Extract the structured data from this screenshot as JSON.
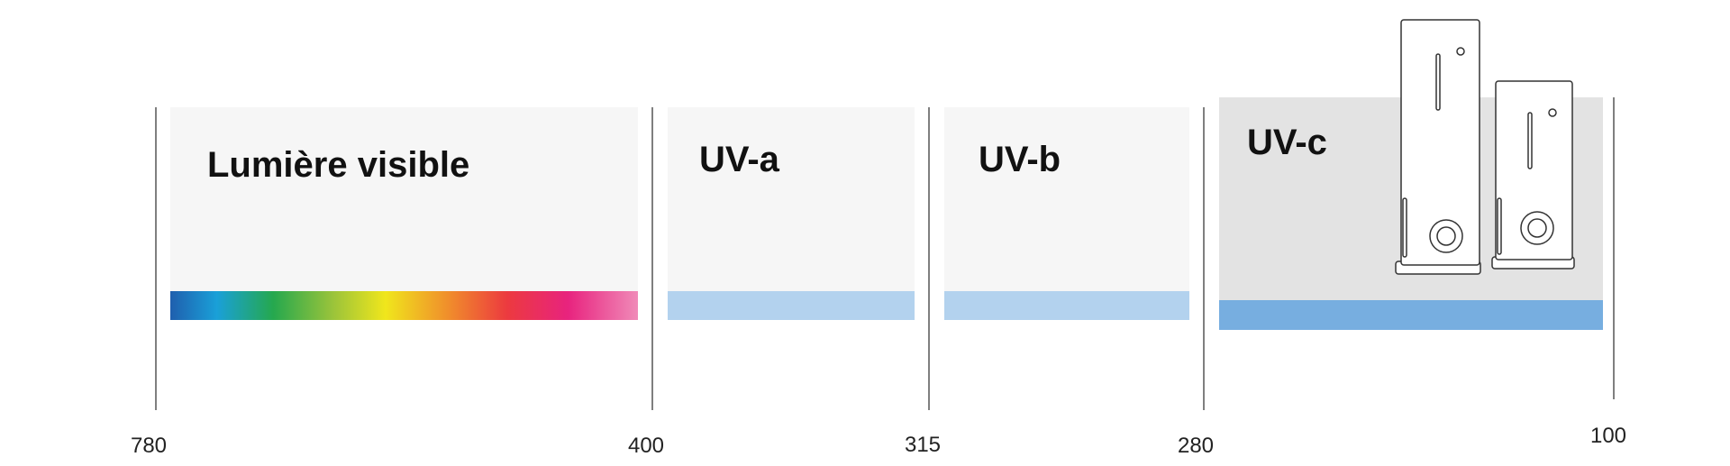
{
  "bands": [
    {
      "label": "Lumière visible"
    },
    {
      "label": "UV-a"
    },
    {
      "label": "UV-b"
    },
    {
      "label": "UV-c"
    }
  ],
  "wavelengths": [
    "780",
    "400",
    "315",
    "280",
    "100"
  ]
}
